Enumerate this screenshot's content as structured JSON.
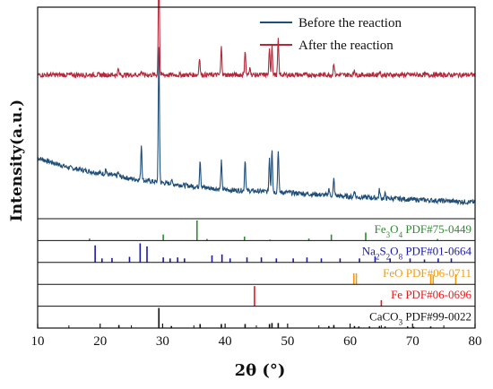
{
  "chart_data": {
    "type": "line",
    "xlabel": "2θ (°)",
    "ylabel": "Intensity(a.u.)",
    "xlim": [
      10,
      80
    ],
    "x_ticks": [
      "10",
      "20",
      "30",
      "40",
      "50",
      "60",
      "70",
      "80"
    ],
    "legend_position": "top-right",
    "series": [
      {
        "name": "Before the reaction",
        "color": "#1f4e79",
        "baseline": [
          [
            10,
            0.4
          ],
          [
            15,
            0.33
          ],
          [
            20,
            0.29
          ],
          [
            25,
            0.25
          ],
          [
            30,
            0.22
          ],
          [
            40,
            0.17
          ],
          [
            50,
            0.15
          ],
          [
            60,
            0.12
          ],
          [
            70,
            0.1
          ],
          [
            80,
            0.08
          ]
        ],
        "peaks": [
          [
            20.9,
            0.04
          ],
          [
            22.9,
            0.03
          ],
          [
            26.6,
            0.26
          ],
          [
            29.4,
            0.98
          ],
          [
            31.4,
            0.03
          ],
          [
            36.0,
            0.2
          ],
          [
            39.4,
            0.2
          ],
          [
            43.2,
            0.23
          ],
          [
            47.1,
            0.25
          ],
          [
            47.5,
            0.32
          ],
          [
            48.5,
            0.31
          ],
          [
            56.6,
            0.05
          ],
          [
            57.4,
            0.12
          ],
          [
            60.7,
            0.05
          ],
          [
            64.7,
            0.06
          ],
          [
            65.6,
            0.03
          ]
        ]
      },
      {
        "name": "After the reaction",
        "color": "#b5273a",
        "baseline": [
          [
            10,
            1.0
          ],
          [
            20,
            1.0
          ],
          [
            30,
            1.0
          ],
          [
            40,
            1.0
          ],
          [
            50,
            1.0
          ],
          [
            60,
            1.0
          ],
          [
            70,
            1.0
          ],
          [
            80,
            1.0
          ]
        ],
        "peaks": [
          [
            22.9,
            0.04
          ],
          [
            26.6,
            0.03
          ],
          [
            29.4,
            0.82
          ],
          [
            35.9,
            0.13
          ],
          [
            39.4,
            0.2
          ],
          [
            43.2,
            0.18
          ],
          [
            44.0,
            0.06
          ],
          [
            47.1,
            0.18
          ],
          [
            47.5,
            0.22
          ],
          [
            48.5,
            0.25
          ],
          [
            57.4,
            0.09
          ],
          [
            60.7,
            0.04
          ],
          [
            64.7,
            0.03
          ]
        ]
      }
    ],
    "references": [
      {
        "label_main": "Fe",
        "label_sub": "3",
        "label_main2": "O",
        "label_sub2": "4",
        "label_tail": " PDF#75-0449",
        "color": "#2e8b2e",
        "lines": [
          [
            18.3,
            0.1
          ],
          [
            30.1,
            0.3
          ],
          [
            35.5,
            1.0
          ],
          [
            37.1,
            0.08
          ],
          [
            43.1,
            0.2
          ],
          [
            47.2,
            0.05
          ],
          [
            53.4,
            0.1
          ],
          [
            57.0,
            0.3
          ],
          [
            62.5,
            0.4
          ],
          [
            74.0,
            0.08
          ]
        ]
      },
      {
        "label_main": "Na",
        "label_sub": "2",
        "label_main2": "S",
        "label_sub2": "2",
        "label_main3": "O",
        "label_sub3": "8",
        "label_tail": "  PDF#01-0664",
        "color": "#1a1aa8",
        "lines": [
          [
            19.2,
            0.85
          ],
          [
            20.3,
            0.2
          ],
          [
            21.9,
            0.22
          ],
          [
            24.7,
            0.28
          ],
          [
            26.4,
            0.95
          ],
          [
            27.5,
            0.8
          ],
          [
            30.1,
            0.25
          ],
          [
            31.2,
            0.2
          ],
          [
            32.4,
            0.25
          ],
          [
            33.5,
            0.2
          ],
          [
            37.9,
            0.35
          ],
          [
            39.5,
            0.4
          ],
          [
            40.8,
            0.2
          ],
          [
            43.5,
            0.25
          ],
          [
            45.8,
            0.25
          ],
          [
            48.2,
            0.2
          ],
          [
            50.9,
            0.2
          ],
          [
            53.1,
            0.25
          ],
          [
            55.4,
            0.2
          ],
          [
            58.4,
            0.2
          ],
          [
            61.5,
            0.2
          ],
          [
            64.0,
            0.3
          ],
          [
            66.4,
            0.2
          ],
          [
            69.6,
            0.2
          ],
          [
            71.9,
            0.15
          ],
          [
            74.1,
            0.2
          ],
          [
            76.2,
            0.2
          ]
        ]
      },
      {
        "label_main": "FeO  PDF#06-0711",
        "color": "#f39c12",
        "lines": [
          [
            60.6,
            0.55
          ],
          [
            61.0,
            0.55
          ],
          [
            72.9,
            0.45
          ],
          [
            73.3,
            0.45
          ],
          [
            76.9,
            0.5
          ]
        ]
      },
      {
        "label_main": "Fe  PDF#06-0696",
        "color": "#e31a1c",
        "lines": [
          [
            44.7,
            1.0
          ],
          [
            65.0,
            0.3
          ]
        ]
      },
      {
        "label_main": "CaCO",
        "label_sub": "3",
        "label_tail": "  PDF#99-0022",
        "color": "#111111",
        "lines": [
          [
            23.0,
            0.15
          ],
          [
            29.4,
            1.0
          ],
          [
            31.4,
            0.1
          ],
          [
            36.0,
            0.2
          ],
          [
            39.4,
            0.2
          ],
          [
            43.2,
            0.2
          ],
          [
            47.1,
            0.2
          ],
          [
            47.5,
            0.25
          ],
          [
            48.5,
            0.25
          ],
          [
            56.6,
            0.1
          ],
          [
            57.4,
            0.15
          ],
          [
            60.7,
            0.1
          ],
          [
            61.4,
            0.08
          ],
          [
            63.1,
            0.08
          ],
          [
            64.7,
            0.1
          ],
          [
            65.6,
            0.08
          ],
          [
            69.2,
            0.08
          ],
          [
            70.2,
            0.06
          ],
          [
            72.9,
            0.08
          ]
        ]
      }
    ]
  }
}
